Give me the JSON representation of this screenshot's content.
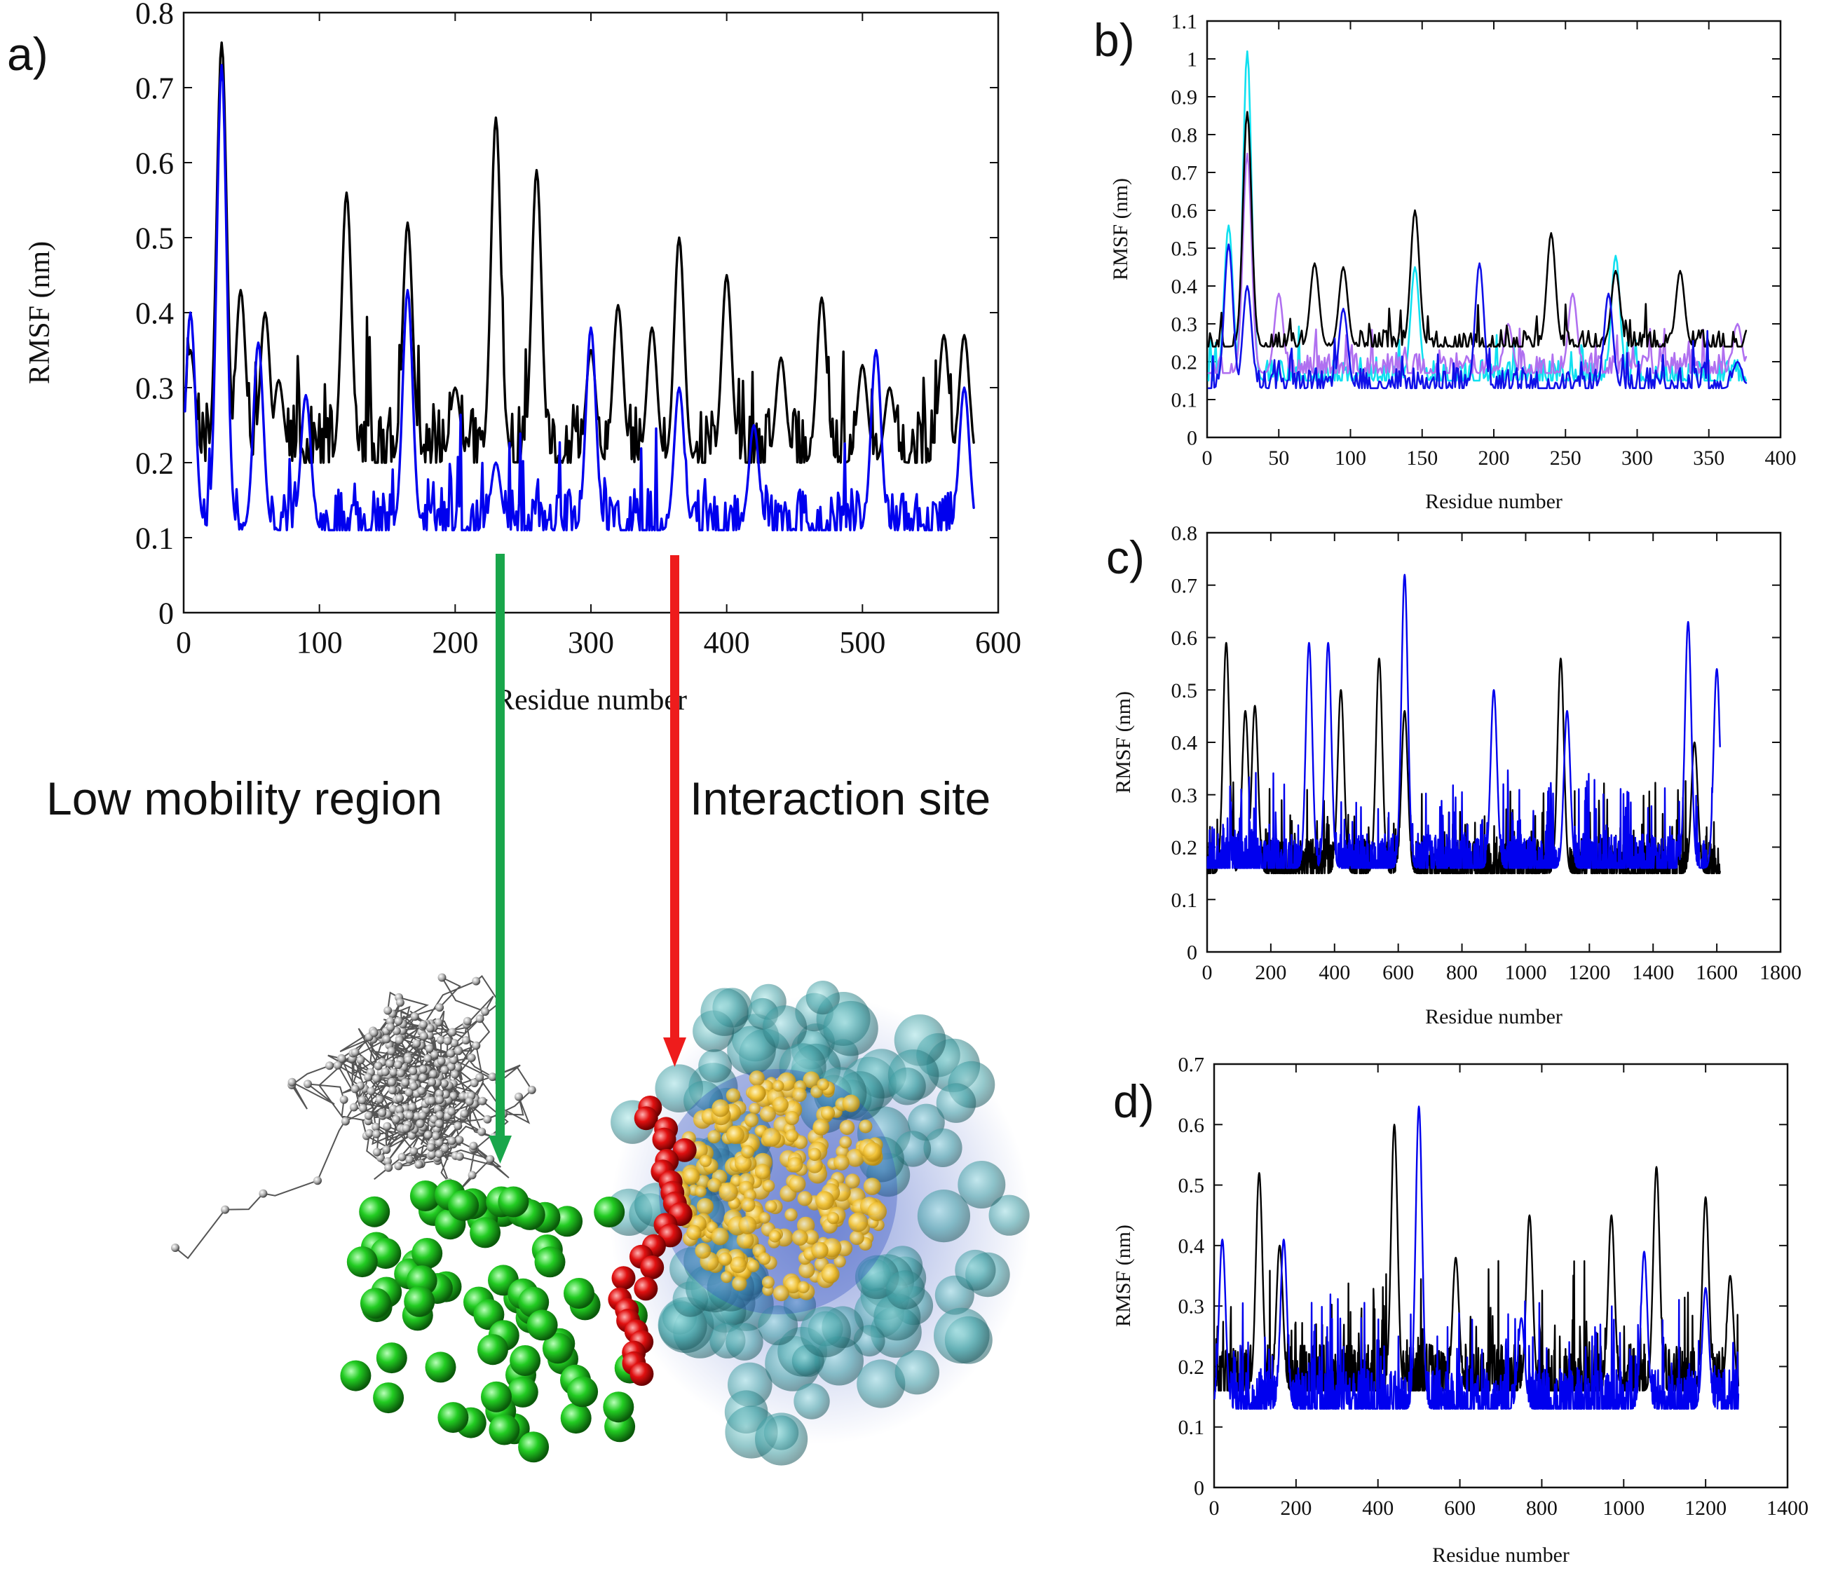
{
  "labels": {
    "low_mobility": "Low mobility region",
    "interaction": "Interaction site"
  },
  "colors": {
    "arrow_green": "#19a64b",
    "arrow_red": "#ee1c1c",
    "bead_green": "#27c627",
    "bead_red": "#e01010",
    "protein_teal": "#4aa3a8",
    "protein_yellow": "#f3c53a",
    "backbone": "#555555"
  },
  "chart_data": [
    {
      "id": "a",
      "panel_label": "a)",
      "type": "line",
      "xlabel": "Residue number",
      "ylabel": "RMSF (nm)",
      "xlim": [
        0,
        600
      ],
      "ylim": [
        0,
        0.8
      ],
      "xticks": [
        "0",
        "100",
        "200",
        "300",
        "400",
        "500",
        "600"
      ],
      "yticks": [
        "0",
        "0.1",
        "0.2",
        "0.3",
        "0.4",
        "0.5",
        "0.6",
        "0.7",
        "0.8"
      ],
      "n_residues": 582,
      "series": [
        {
          "name": "black",
          "color": "#000000",
          "base": 0.2,
          "noise": 0.07,
          "seed": 11,
          "peaks": [
            [
              5,
              0.35
            ],
            [
              28,
              0.76
            ],
            [
              42,
              0.43
            ],
            [
              60,
              0.4
            ],
            [
              70,
              0.31
            ],
            [
              120,
              0.56
            ],
            [
              165,
              0.52
            ],
            [
              200,
              0.3
            ],
            [
              230,
              0.66
            ],
            [
              260,
              0.59
            ],
            [
              300,
              0.35
            ],
            [
              320,
              0.41
            ],
            [
              345,
              0.38
            ],
            [
              365,
              0.5
            ],
            [
              400,
              0.45
            ],
            [
              440,
              0.34
            ],
            [
              470,
              0.42
            ],
            [
              500,
              0.33
            ],
            [
              520,
              0.3
            ],
            [
              560,
              0.37
            ],
            [
              575,
              0.37
            ]
          ]
        },
        {
          "name": "blue",
          "color": "#0000ee",
          "base": 0.11,
          "noise": 0.05,
          "seed": 23,
          "peaks": [
            [
              5,
              0.4
            ],
            [
              28,
              0.73
            ],
            [
              55,
              0.36
            ],
            [
              90,
              0.29
            ],
            [
              165,
              0.43
            ],
            [
              230,
              0.2
            ],
            [
              300,
              0.38
            ],
            [
              365,
              0.3
            ],
            [
              420,
              0.25
            ],
            [
              510,
              0.35
            ],
            [
              575,
              0.3
            ]
          ]
        }
      ]
    },
    {
      "id": "b",
      "panel_label": "b)",
      "type": "line",
      "xlabel": "Residue number",
      "ylabel": "RMSF (nm)",
      "xlim": [
        0,
        400
      ],
      "ylim": [
        0,
        1.1
      ],
      "xticks": [
        "0",
        "50",
        "100",
        "150",
        "200",
        "250",
        "300",
        "350",
        "400"
      ],
      "yticks": [
        "0",
        "0.1",
        "0.2",
        "0.3",
        "0.4",
        "0.5",
        "0.6",
        "0.7",
        "0.8",
        "0.9",
        "1",
        "1.1"
      ],
      "n_residues": 376,
      "series": [
        {
          "name": "cyan",
          "color": "#10e0f0",
          "base": 0.15,
          "noise": 0.05,
          "seed": 31,
          "peaks": [
            [
              15,
              0.56
            ],
            [
              28,
              1.02
            ],
            [
              145,
              0.45
            ],
            [
              285,
              0.48
            ]
          ]
        },
        {
          "name": "violet",
          "color": "#b070f0",
          "base": 0.17,
          "noise": 0.05,
          "seed": 37,
          "peaks": [
            [
              28,
              0.75
            ],
            [
              50,
              0.38
            ],
            [
              210,
              0.3
            ],
            [
              255,
              0.38
            ],
            [
              370,
              0.3
            ]
          ]
        },
        {
          "name": "black",
          "color": "#000000",
          "base": 0.24,
          "noise": 0.04,
          "seed": 41,
          "peaks": [
            [
              28,
              0.86
            ],
            [
              75,
              0.46
            ],
            [
              95,
              0.45
            ],
            [
              145,
              0.6
            ],
            [
              240,
              0.54
            ],
            [
              285,
              0.44
            ],
            [
              330,
              0.44
            ]
          ]
        },
        {
          "name": "blue",
          "color": "#1010e8",
          "base": 0.13,
          "noise": 0.05,
          "seed": 43,
          "peaks": [
            [
              15,
              0.51
            ],
            [
              28,
              0.4
            ],
            [
              95,
              0.34
            ],
            [
              190,
              0.46
            ],
            [
              280,
              0.38
            ],
            [
              370,
              0.2
            ]
          ]
        }
      ]
    },
    {
      "id": "c",
      "panel_label": "c)",
      "type": "line",
      "xlabel": "Residue number",
      "ylabel": "RMSF (nm)",
      "xlim": [
        0,
        1800
      ],
      "ylim": [
        0,
        0.8
      ],
      "xticks": [
        "0",
        "200",
        "400",
        "600",
        "800",
        "1000",
        "1200",
        "1400",
        "1600",
        "1800"
      ],
      "yticks": [
        "0",
        "0.1",
        "0.2",
        "0.3",
        "0.4",
        "0.5",
        "0.6",
        "0.7",
        "0.8"
      ],
      "n_residues": 1610,
      "series": [
        {
          "name": "black",
          "color": "#000000",
          "base": 0.15,
          "noise": 0.06,
          "seed": 51,
          "peaks": [
            [
              60,
              0.59
            ],
            [
              120,
              0.46
            ],
            [
              150,
              0.47
            ],
            [
              420,
              0.5
            ],
            [
              540,
              0.56
            ],
            [
              620,
              0.46
            ],
            [
              1110,
              0.56
            ],
            [
              1530,
              0.4
            ]
          ]
        },
        {
          "name": "blue",
          "color": "#0000ee",
          "base": 0.16,
          "noise": 0.06,
          "seed": 53,
          "peaks": [
            [
              320,
              0.59
            ],
            [
              380,
              0.59
            ],
            [
              620,
              0.72
            ],
            [
              900,
              0.5
            ],
            [
              1130,
              0.46
            ],
            [
              1510,
              0.63
            ],
            [
              1600,
              0.54
            ]
          ]
        }
      ]
    },
    {
      "id": "d",
      "panel_label": "d)",
      "type": "line",
      "xlabel": "Residue number",
      "ylabel": "RMSF (nm)",
      "xlim": [
        0,
        1400
      ],
      "ylim": [
        0,
        0.7
      ],
      "xticks": [
        "0",
        "200",
        "400",
        "600",
        "800",
        "1000",
        "1200",
        "1400"
      ],
      "yticks": [
        "0",
        "0.1",
        "0.2",
        "0.3",
        "0.4",
        "0.5",
        "0.6",
        "0.7"
      ],
      "n_residues": 1280,
      "series": [
        {
          "name": "black",
          "color": "#000000",
          "base": 0.16,
          "noise": 0.07,
          "seed": 61,
          "peaks": [
            [
              110,
              0.52
            ],
            [
              160,
              0.4
            ],
            [
              440,
              0.6
            ],
            [
              590,
              0.38
            ],
            [
              770,
              0.45
            ],
            [
              970,
              0.45
            ],
            [
              1080,
              0.53
            ],
            [
              1200,
              0.48
            ],
            [
              1260,
              0.35
            ]
          ]
        },
        {
          "name": "blue",
          "color": "#0000ee",
          "base": 0.13,
          "noise": 0.06,
          "seed": 67,
          "peaks": [
            [
              20,
              0.41
            ],
            [
              170,
              0.41
            ],
            [
              500,
              0.63
            ],
            [
              750,
              0.28
            ],
            [
              1050,
              0.39
            ],
            [
              1200,
              0.33
            ]
          ]
        }
      ]
    }
  ]
}
